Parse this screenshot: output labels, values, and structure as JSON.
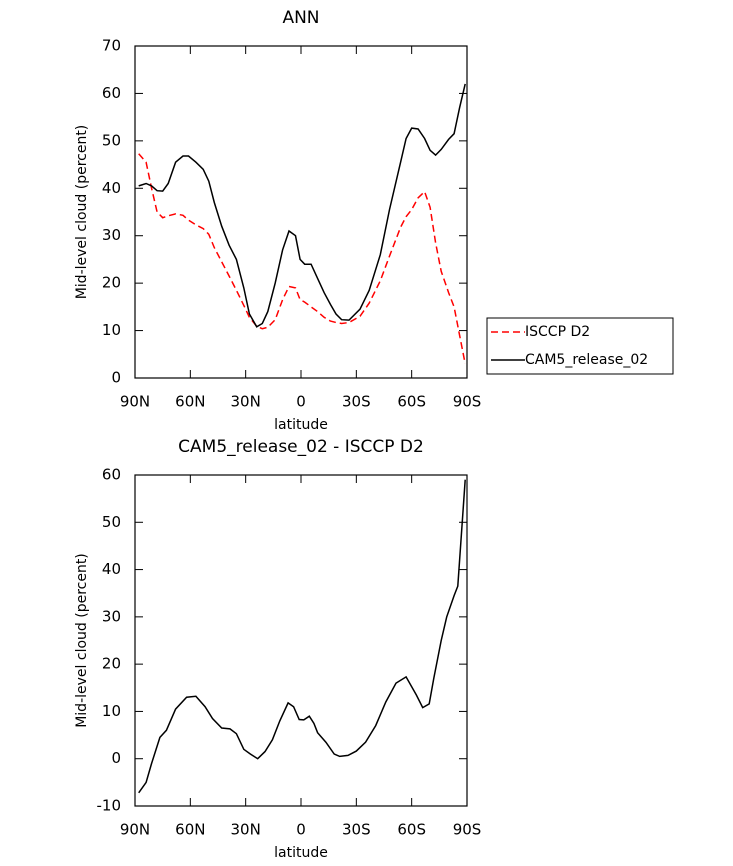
{
  "chart_data": [
    {
      "type": "line",
      "title": "ANN",
      "xlabel": "latitude",
      "ylabel": "Mid-level cloud (percent)",
      "x": [
        88,
        84,
        81,
        78,
        75,
        72,
        68,
        64,
        61,
        57,
        53,
        50,
        47,
        43,
        39,
        35,
        31,
        28,
        24,
        21,
        18,
        14,
        10,
        6.5,
        3,
        0.5,
        -2,
        -5.5,
        -9,
        -12.5,
        -16,
        -19,
        -22,
        -26,
        -32,
        -37,
        -43,
        -48,
        -54,
        -57,
        -60,
        -63.5,
        -67,
        -70,
        -73,
        -76,
        -80,
        -83,
        -86,
        -89
      ],
      "series": [
        {
          "name": "ISCCP D2",
          "color": "#ff0000",
          "linestyle": "dashed",
          "values": [
            47.3,
            45.5,
            40,
            35,
            33.8,
            34.2,
            34.6,
            34.3,
            33.3,
            32.3,
            31.5,
            30.3,
            27.5,
            24.5,
            21.5,
            18.5,
            15.3,
            12.8,
            10.9,
            10.4,
            10.7,
            12.3,
            16.5,
            19.3,
            19,
            16.5,
            16,
            15,
            14,
            12.8,
            12,
            11.7,
            11.5,
            11.7,
            13,
            15.8,
            20.5,
            25.7,
            31.8,
            34,
            35.5,
            38,
            39.3,
            36,
            28.5,
            22.5,
            18,
            15,
            9,
            3
          ]
        },
        {
          "name": "CAM5_release_02",
          "color": "#000000",
          "linestyle": "solid",
          "values": [
            40.5,
            41,
            40.5,
            39.5,
            39.4,
            41,
            45.5,
            46.8,
            46.8,
            45.5,
            44,
            41.5,
            37,
            32,
            28,
            25,
            19,
            13.5,
            10.8,
            11.5,
            14,
            20,
            27,
            31,
            30,
            25,
            24,
            24,
            21,
            18,
            15.5,
            13.5,
            12.3,
            12.2,
            14.5,
            18.5,
            26,
            35.5,
            45.5,
            50.5,
            52.7,
            52.5,
            50.5,
            48,
            47,
            48.2,
            50.3,
            51.5,
            57,
            62
          ]
        }
      ],
      "xlim": [
        90,
        -90
      ],
      "xticks": [
        {
          "value": 90,
          "label": "90N"
        },
        {
          "value": 60,
          "label": "60N"
        },
        {
          "value": 30,
          "label": "30N"
        },
        0,
        {
          "value": -30,
          "label": "30S"
        },
        {
          "value": -60,
          "label": "60S"
        },
        {
          "value": -90,
          "label": "90S"
        }
      ],
      "ylim": [
        0,
        70
      ],
      "yticks": [
        0,
        10,
        20,
        30,
        40,
        50,
        60,
        70
      ],
      "legend": "right"
    },
    {
      "type": "line",
      "title": "CAM5_release_02 - ISCCP D2",
      "xlabel": "latitude",
      "ylabel": "Mid-level cloud (percent)",
      "x": [
        88,
        84,
        81,
        76.5,
        73,
        68,
        62,
        57,
        52,
        48,
        43,
        38.5,
        35,
        31,
        27.5,
        23.5,
        19.5,
        15.5,
        11.5,
        7,
        4,
        1,
        -1.5,
        -4.5,
        -7,
        -9,
        -13.5,
        -18,
        -21,
        -25.5,
        -30,
        -35,
        -40.5,
        -46,
        -51.5,
        -57,
        -62.5,
        -66,
        -69.5,
        -72,
        -76,
        -79,
        -83,
        -85,
        -89
      ],
      "series": [
        {
          "color": "#000000",
          "linestyle": "solid",
          "values": [
            -7.2,
            -5,
            -1,
            4.5,
            6,
            10.5,
            13,
            13.2,
            11,
            8.5,
            6.5,
            6.3,
            5.3,
            2,
            1,
            0,
            1.5,
            4,
            8,
            11.8,
            11,
            8.3,
            8.2,
            9,
            7.5,
            5.5,
            3.5,
            1,
            0.5,
            0.7,
            1.6,
            3.5,
            7,
            12,
            16,
            17.3,
            13.5,
            10.8,
            11.6,
            17,
            25,
            30,
            34.5,
            36.5,
            59
          ]
        }
      ],
      "xlim": [
        90,
        -90
      ],
      "xticks": [
        {
          "value": 90,
          "label": "90N"
        },
        {
          "value": 60,
          "label": "60N"
        },
        {
          "value": 30,
          "label": "30N"
        },
        0,
        {
          "value": -30,
          "label": "30S"
        },
        {
          "value": -60,
          "label": "60S"
        },
        {
          "value": -90,
          "label": "90S"
        }
      ],
      "ylim": [
        -10,
        60
      ],
      "yticks": [
        -10,
        0,
        10,
        20,
        30,
        40,
        50,
        60
      ]
    }
  ]
}
